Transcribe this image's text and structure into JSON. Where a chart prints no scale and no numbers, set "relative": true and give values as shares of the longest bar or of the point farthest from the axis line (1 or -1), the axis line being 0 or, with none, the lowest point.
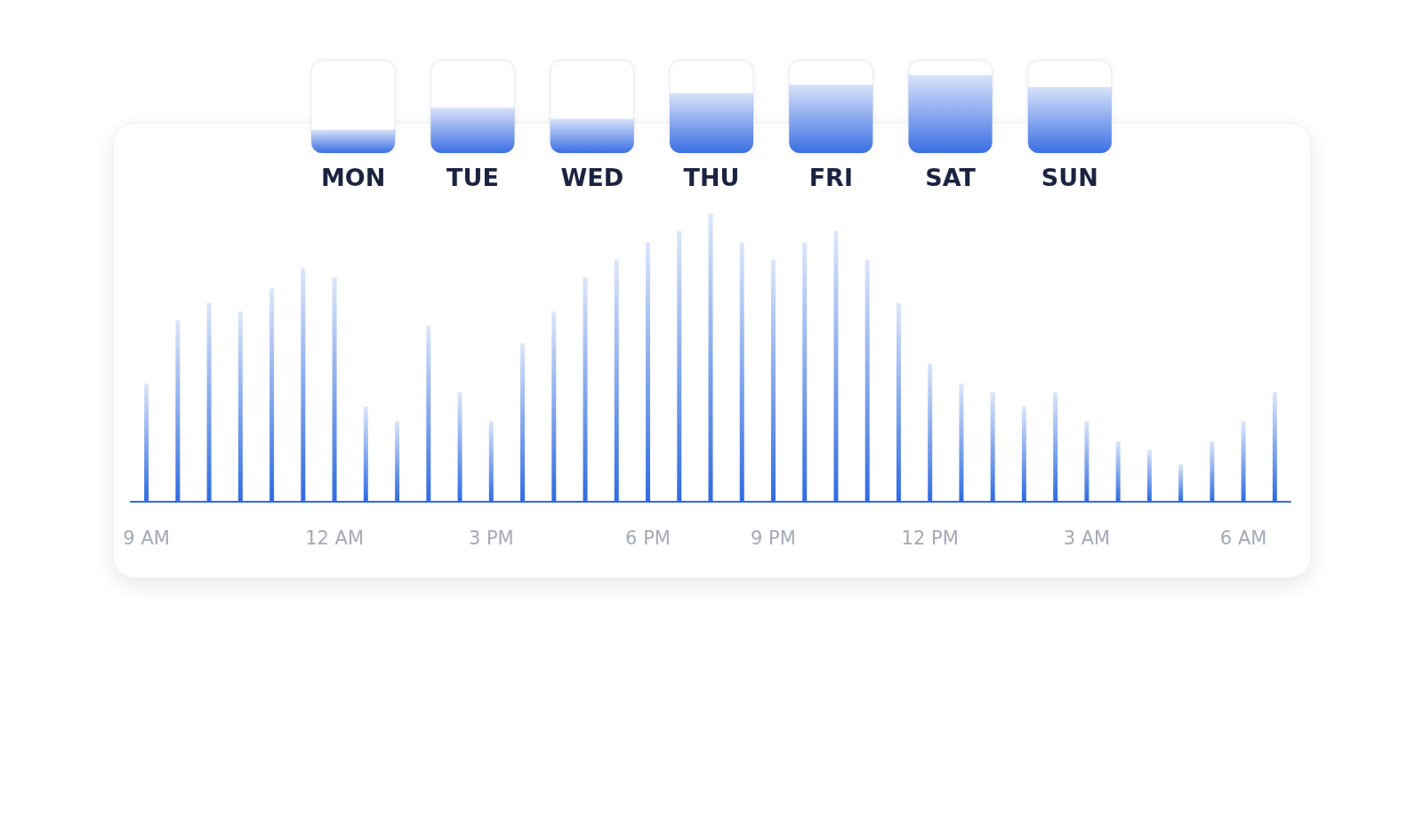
{
  "chart_data": [
    {
      "type": "bar",
      "relative": true,
      "categories": [
        "MON",
        "TUE",
        "WED",
        "THU",
        "FRI",
        "SAT",
        "SUN"
      ],
      "values": [
        0.3,
        0.58,
        0.44,
        0.77,
        0.88,
        1,
        0.85
      ],
      "color": "#3a6fe3"
    },
    {
      "type": "bar",
      "relative": true,
      "categories": [
        "9 AM",
        null,
        null,
        null,
        null,
        null,
        "12 AM",
        null,
        null,
        null,
        null,
        "3 PM",
        null,
        null,
        null,
        null,
        "6 PM",
        null,
        null,
        null,
        "9 PM",
        null,
        null,
        null,
        null,
        "12 PM",
        null,
        null,
        null,
        null,
        "3 AM",
        null,
        null,
        null,
        null,
        "6 AM",
        null
      ],
      "values": [
        0.41,
        0.63,
        0.69,
        0.66,
        0.74,
        0.81,
        0.78,
        0.33,
        0.28,
        0.61,
        0.38,
        0.28,
        0.55,
        0.66,
        0.78,
        0.84,
        0.9,
        0.94,
        1,
        0.9,
        0.84,
        0.9,
        0.94,
        0.84,
        0.69,
        0.48,
        0.41,
        0.38,
        0.33,
        0.38,
        0.28,
        0.21,
        0.18,
        0.13,
        0.21,
        0.28,
        0.38
      ],
      "color": "#2f6be0"
    }
  ]
}
